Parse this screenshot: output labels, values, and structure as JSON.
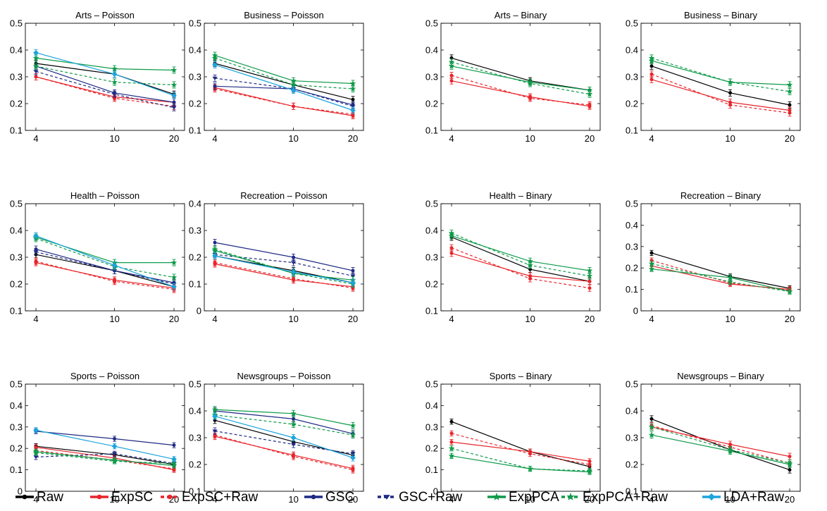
{
  "colors": {
    "Raw": "#000000",
    "ExpSC": "#e8242a",
    "ExpSC+Raw": "#e8242a",
    "GSC": "#1f2a84",
    "GSC+Raw": "#1f2a84",
    "ExpPCA": "#0f9b4a",
    "ExpPCA+Raw": "#0f9b4a",
    "LDA+Raw": "#1ba3dc"
  },
  "legend": [
    {
      "name": "Raw",
      "marker": "dot",
      "dashed": false
    },
    {
      "name": "ExpSC",
      "marker": "dot",
      "dashed": false
    },
    {
      "name": "ExpSC+Raw",
      "marker": "dot",
      "dashed": true
    },
    {
      "name": "GSC",
      "marker": "dot",
      "dashed": false
    },
    {
      "name": "GSC+Raw",
      "marker": "triangle",
      "dashed": true
    },
    {
      "name": "ExpPCA",
      "marker": "star",
      "dashed": false
    },
    {
      "name": "ExpPCA+Raw",
      "marker": "star",
      "dashed": true
    },
    {
      "name": "LDA+Raw",
      "marker": "diamond",
      "dashed": false
    }
  ],
  "chart_data": [
    {
      "type": "line",
      "title": "Arts – Poisson",
      "x": [
        4,
        10,
        20
      ],
      "ylim": [
        0.1,
        0.5
      ],
      "yticks": [
        "0.1",
        "0.2",
        "0.3",
        "0.4",
        "0.5"
      ],
      "series": [
        {
          "name": "Raw",
          "values": [
            0.35,
            0.31,
            0.235
          ]
        },
        {
          "name": "ExpSC",
          "values": [
            0.3,
            0.225,
            0.205
          ]
        },
        {
          "name": "ExpSC+Raw",
          "values": [
            0.3,
            0.22,
            0.19
          ]
        },
        {
          "name": "GSC",
          "values": [
            0.34,
            0.24,
            0.205
          ]
        },
        {
          "name": "GSC+Raw",
          "values": [
            0.32,
            0.235,
            0.185
          ]
        },
        {
          "name": "ExpPCA",
          "values": [
            0.37,
            0.33,
            0.325
          ]
        },
        {
          "name": "ExpPCA+Raw",
          "values": [
            0.34,
            0.28,
            0.27
          ]
        },
        {
          "name": "LDA+Raw",
          "values": [
            0.39,
            0.31,
            0.23
          ]
        }
      ]
    },
    {
      "type": "line",
      "title": "Business – Poisson",
      "x": [
        4,
        10,
        20
      ],
      "ylim": [
        0.1,
        0.5
      ],
      "yticks": [
        "0.1",
        "0.2",
        "0.3",
        "0.4",
        "0.5"
      ],
      "series": [
        {
          "name": "Raw",
          "values": [
            0.35,
            0.27,
            0.215
          ]
        },
        {
          "name": "ExpSC",
          "values": [
            0.26,
            0.19,
            0.155
          ]
        },
        {
          "name": "ExpSC+Raw",
          "values": [
            0.255,
            0.19,
            0.16
          ]
        },
        {
          "name": "GSC",
          "values": [
            0.265,
            0.255,
            0.195
          ]
        },
        {
          "name": "GSC+Raw",
          "values": [
            0.295,
            0.255,
            0.19
          ]
        },
        {
          "name": "ExpPCA",
          "values": [
            0.38,
            0.285,
            0.275
          ]
        },
        {
          "name": "ExpPCA+Raw",
          "values": [
            0.37,
            0.27,
            0.255
          ]
        },
        {
          "name": "LDA+Raw",
          "values": [
            0.345,
            0.25,
            0.175
          ]
        }
      ]
    },
    {
      "type": "line",
      "title": "Arts – Binary",
      "x": [
        4,
        10,
        20
      ],
      "ylim": [
        0.1,
        0.5
      ],
      "yticks": [
        "0.1",
        "0.2",
        "0.3",
        "0.4",
        "0.5"
      ],
      "series": [
        {
          "name": "Raw",
          "values": [
            0.37,
            0.285,
            0.25
          ]
        },
        {
          "name": "ExpSC",
          "values": [
            0.285,
            0.225,
            0.19
          ]
        },
        {
          "name": "ExpSC+Raw",
          "values": [
            0.305,
            0.22,
            0.195
          ]
        },
        {
          "name": "ExpPCA",
          "values": [
            0.34,
            0.28,
            0.25
          ]
        },
        {
          "name": "ExpPCA+Raw",
          "values": [
            0.355,
            0.275,
            0.235
          ]
        }
      ]
    },
    {
      "type": "line",
      "title": "Business – Binary",
      "x": [
        4,
        10,
        20
      ],
      "ylim": [
        0.1,
        0.5
      ],
      "yticks": [
        "0.1",
        "0.2",
        "0.3",
        "0.4",
        "0.5"
      ],
      "series": [
        {
          "name": "Raw",
          "values": [
            0.34,
            0.24,
            0.195
          ]
        },
        {
          "name": "ExpSC",
          "values": [
            0.29,
            0.205,
            0.175
          ]
        },
        {
          "name": "ExpSC+Raw",
          "values": [
            0.31,
            0.195,
            0.165
          ]
        },
        {
          "name": "ExpPCA",
          "values": [
            0.36,
            0.28,
            0.27
          ]
        },
        {
          "name": "ExpPCA+Raw",
          "values": [
            0.37,
            0.28,
            0.245
          ]
        }
      ]
    },
    {
      "type": "line",
      "title": "Health – Poisson",
      "x": [
        4,
        10,
        20
      ],
      "ylim": [
        0.1,
        0.5
      ],
      "yticks": [
        "0.1",
        "0.2",
        "0.3",
        "0.4",
        "0.5"
      ],
      "series": [
        {
          "name": "Raw",
          "values": [
            0.31,
            0.25,
            0.19
          ]
        },
        {
          "name": "ExpSC",
          "values": [
            0.28,
            0.215,
            0.185
          ]
        },
        {
          "name": "ExpSC+Raw",
          "values": [
            0.285,
            0.21,
            0.18
          ]
        },
        {
          "name": "GSC",
          "values": [
            0.33,
            0.25,
            0.205
          ]
        },
        {
          "name": "GSC+Raw",
          "values": [
            0.32,
            0.25,
            0.2
          ]
        },
        {
          "name": "ExpPCA",
          "values": [
            0.375,
            0.28,
            0.28
          ]
        },
        {
          "name": "ExpPCA+Raw",
          "values": [
            0.37,
            0.265,
            0.225
          ]
        },
        {
          "name": "LDA+Raw",
          "values": [
            0.38,
            0.27,
            0.19
          ]
        }
      ]
    },
    {
      "type": "line",
      "title": "Recreation – Poisson",
      "x": [
        4,
        10,
        20
      ],
      "ylim": [
        0,
        0.4
      ],
      "yticks": [
        "0",
        "0.1",
        "0.2",
        "0.3",
        "0.4"
      ],
      "series": [
        {
          "name": "Raw",
          "values": [
            0.205,
            0.15,
            0.105
          ]
        },
        {
          "name": "ExpSC",
          "values": [
            0.175,
            0.115,
            0.09
          ]
        },
        {
          "name": "ExpSC+Raw",
          "values": [
            0.18,
            0.12,
            0.085
          ]
        },
        {
          "name": "GSC",
          "values": [
            0.255,
            0.2,
            0.15
          ]
        },
        {
          "name": "GSC+Raw",
          "values": [
            0.21,
            0.18,
            0.13
          ]
        },
        {
          "name": "ExpPCA",
          "values": [
            0.225,
            0.14,
            0.115
          ]
        },
        {
          "name": "ExpPCA+Raw",
          "values": [
            0.23,
            0.14,
            0.1
          ]
        },
        {
          "name": "LDA+Raw",
          "values": [
            0.205,
            0.145,
            0.105
          ]
        }
      ]
    },
    {
      "type": "line",
      "title": "Health – Binary",
      "x": [
        4,
        10,
        20
      ],
      "ylim": [
        0.1,
        0.5
      ],
      "yticks": [
        "0.1",
        "0.2",
        "0.3",
        "0.4",
        "0.5"
      ],
      "series": [
        {
          "name": "Raw",
          "values": [
            0.375,
            0.255,
            0.21
          ]
        },
        {
          "name": "ExpSC",
          "values": [
            0.315,
            0.23,
            0.21
          ]
        },
        {
          "name": "ExpSC+Raw",
          "values": [
            0.335,
            0.22,
            0.185
          ]
        },
        {
          "name": "ExpPCA",
          "values": [
            0.38,
            0.285,
            0.25
          ]
        },
        {
          "name": "ExpPCA+Raw",
          "values": [
            0.39,
            0.27,
            0.23
          ]
        }
      ]
    },
    {
      "type": "line",
      "title": "Recreation – Binary",
      "x": [
        4,
        10,
        20
      ],
      "ylim": [
        0,
        0.5
      ],
      "yticks": [
        "0",
        "0.1",
        "0.2",
        "0.3",
        "0.4",
        "0.5"
      ],
      "series": [
        {
          "name": "Raw",
          "values": [
            0.27,
            0.16,
            0.105
          ]
        },
        {
          "name": "ExpSC",
          "values": [
            0.21,
            0.125,
            0.1
          ]
        },
        {
          "name": "ExpSC+Raw",
          "values": [
            0.235,
            0.13,
            0.095
          ]
        },
        {
          "name": "ExpPCA",
          "values": [
            0.195,
            0.155,
            0.09
          ]
        },
        {
          "name": "ExpPCA+Raw",
          "values": [
            0.22,
            0.135,
            0.09
          ]
        }
      ]
    },
    {
      "type": "line",
      "title": "Sports – Poisson",
      "x": [
        4,
        10,
        20
      ],
      "ylim": [
        0,
        0.5
      ],
      "yticks": [
        "0",
        "0.1",
        "0.2",
        "0.3",
        "0.4",
        "0.5"
      ],
      "series": [
        {
          "name": "Raw",
          "values": [
            0.21,
            0.17,
            0.125
          ]
        },
        {
          "name": "ExpSC",
          "values": [
            0.205,
            0.155,
            0.1
          ]
        },
        {
          "name": "ExpSC+Raw",
          "values": [
            0.19,
            0.145,
            0.105
          ]
        },
        {
          "name": "GSC",
          "values": [
            0.28,
            0.245,
            0.215
          ]
        },
        {
          "name": "GSC+Raw",
          "values": [
            0.16,
            0.175,
            0.13
          ]
        },
        {
          "name": "ExpPCA",
          "values": [
            0.185,
            0.145,
            0.12
          ]
        },
        {
          "name": "ExpPCA+Raw",
          "values": [
            0.18,
            0.14,
            0.13
          ]
        },
        {
          "name": "LDA+Raw",
          "values": [
            0.285,
            0.21,
            0.15
          ]
        }
      ]
    },
    {
      "type": "line",
      "title": "Newsgroups – Poisson",
      "x": [
        4,
        10,
        20
      ],
      "ylim": [
        0.1,
        0.5
      ],
      "yticks": [
        "0.1",
        "0.2",
        "0.3",
        "0.4",
        "0.5"
      ],
      "series": [
        {
          "name": "Raw",
          "values": [
            0.365,
            0.285,
            0.235
          ]
        },
        {
          "name": "ExpSC",
          "values": [
            0.305,
            0.235,
            0.185
          ]
        },
        {
          "name": "ExpSC+Raw",
          "values": [
            0.31,
            0.23,
            0.18
          ]
        },
        {
          "name": "GSC",
          "values": [
            0.4,
            0.37,
            0.315
          ]
        },
        {
          "name": "GSC+Raw",
          "values": [
            0.325,
            0.275,
            0.24
          ]
        },
        {
          "name": "ExpPCA",
          "values": [
            0.405,
            0.39,
            0.345
          ]
        },
        {
          "name": "ExpPCA+Raw",
          "values": [
            0.385,
            0.35,
            0.31
          ]
        },
        {
          "name": "LDA+Raw",
          "values": [
            0.38,
            0.3,
            0.225
          ]
        }
      ]
    },
    {
      "type": "line",
      "title": "Sports – Binary",
      "x": [
        4,
        10,
        20
      ],
      "ylim": [
        0,
        0.5
      ],
      "yticks": [
        "0",
        "0.1",
        "0.2",
        "0.3",
        "0.4",
        "0.5"
      ],
      "series": [
        {
          "name": "Raw",
          "values": [
            0.325,
            0.185,
            0.115
          ]
        },
        {
          "name": "ExpSC",
          "values": [
            0.23,
            0.185,
            0.14
          ]
        },
        {
          "name": "ExpSC+Raw",
          "values": [
            0.27,
            0.175,
            0.125
          ]
        },
        {
          "name": "ExpPCA",
          "values": [
            0.165,
            0.105,
            0.09
          ]
        },
        {
          "name": "ExpPCA+Raw",
          "values": [
            0.2,
            0.105,
            0.095
          ]
        }
      ]
    },
    {
      "type": "line",
      "title": "Newsgroups – Binary",
      "x": [
        4,
        10,
        20
      ],
      "ylim": [
        0.1,
        0.5
      ],
      "yticks": [
        "0.1",
        "0.2",
        "0.3",
        "0.4",
        "0.5"
      ],
      "series": [
        {
          "name": "Raw",
          "values": [
            0.37,
            0.255,
            0.18
          ]
        },
        {
          "name": "ExpSC",
          "values": [
            0.34,
            0.275,
            0.23
          ]
        },
        {
          "name": "ExpSC+Raw",
          "values": [
            0.345,
            0.265,
            0.205
          ]
        },
        {
          "name": "ExpPCA",
          "values": [
            0.31,
            0.25,
            0.2
          ]
        },
        {
          "name": "ExpPCA+Raw",
          "values": [
            0.34,
            0.255,
            0.205
          ]
        }
      ]
    }
  ]
}
